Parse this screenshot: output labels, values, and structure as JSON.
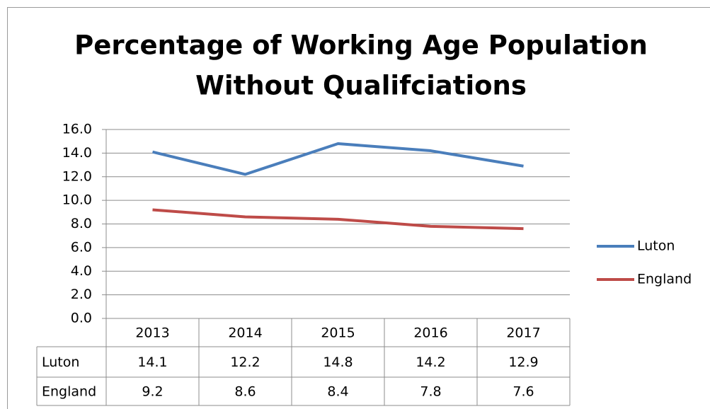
{
  "chart_data": {
    "type": "line",
    "title": [
      "Percentage of Working Age Population",
      "Without Qualifciations"
    ],
    "categories": [
      "2013",
      "2014",
      "2015",
      "2016",
      "2017"
    ],
    "series": [
      {
        "name": "Luton",
        "color": "#4a7ebb",
        "values": [
          14.1,
          12.2,
          14.8,
          14.2,
          12.9
        ]
      },
      {
        "name": "England",
        "color": "#be4b48",
        "values": [
          9.2,
          8.6,
          8.4,
          7.8,
          7.6
        ]
      }
    ],
    "ylim": [
      0,
      16
    ],
    "yticks": [
      {
        "value": 0,
        "label": "0.0"
      },
      {
        "value": 2,
        "label": "2.0"
      },
      {
        "value": 4,
        "label": "4.0"
      },
      {
        "value": 6,
        "label": "6.0"
      },
      {
        "value": 8,
        "label": "8.0"
      },
      {
        "value": 10,
        "label": "10.0"
      },
      {
        "value": 12,
        "label": "12.0"
      },
      {
        "value": 14,
        "label": "14.0"
      },
      {
        "value": 16,
        "label": "16.0"
      }
    ],
    "grid": true,
    "legend": "right",
    "data_table": true
  }
}
